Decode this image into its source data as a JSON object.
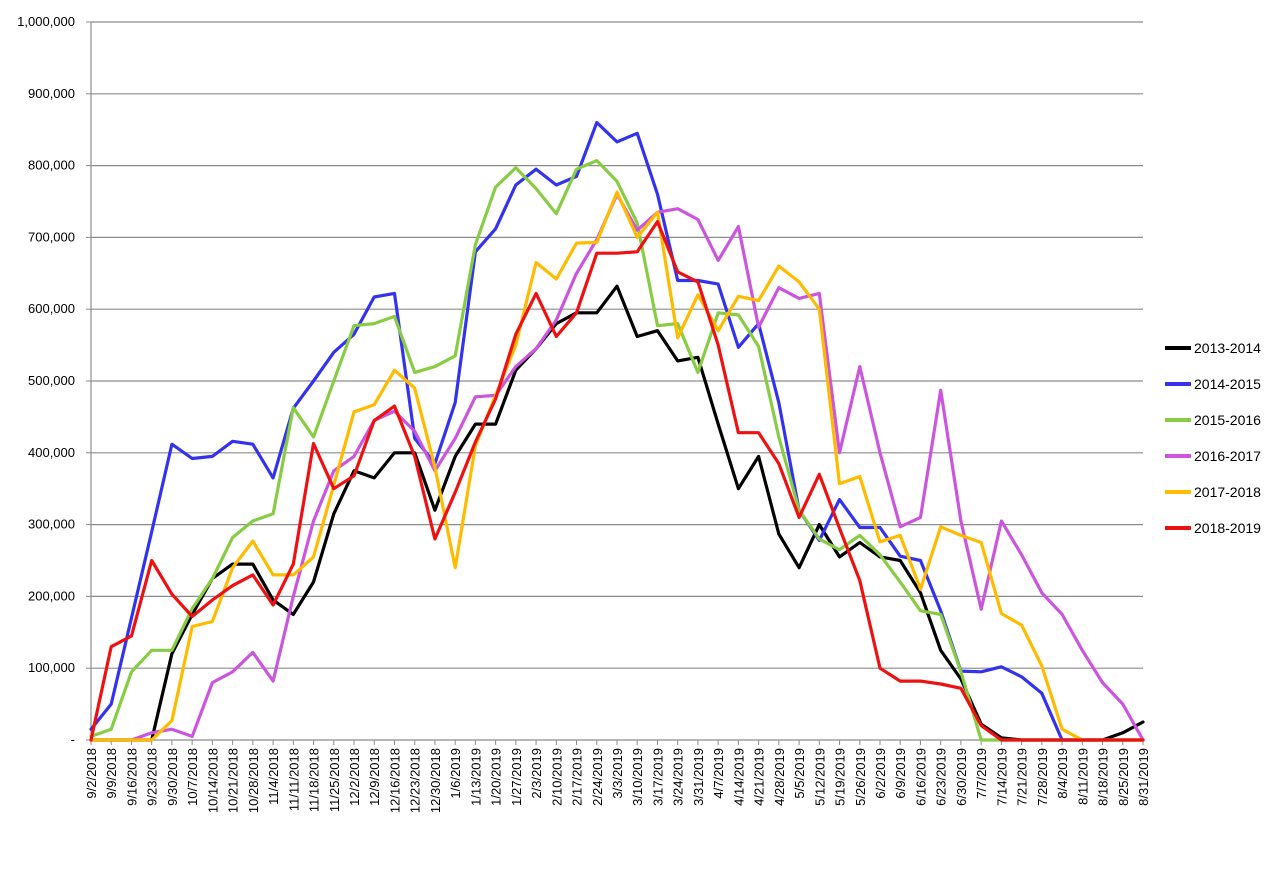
{
  "chart_data": {
    "type": "line",
    "title": "",
    "xlabel": "",
    "ylabel": "",
    "ylim": [
      0,
      1000000
    ],
    "y_ticks": [
      0,
      100000,
      200000,
      300000,
      400000,
      500000,
      600000,
      700000,
      800000,
      900000,
      1000000
    ],
    "y_tick_labels": [
      "-",
      "100,000",
      "200,000",
      "300,000",
      "400,000",
      "500,000",
      "600,000",
      "700,000",
      "800,000",
      "900,000",
      "1,000,000"
    ],
    "grid": true,
    "legend_position": "right",
    "categories": [
      "9/2/2018",
      "9/9/2018",
      "9/16/2018",
      "9/23/2018",
      "9/30/2018",
      "10/7/2018",
      "10/14/2018",
      "10/21/2018",
      "10/28/2018",
      "11/4/2018",
      "11/11/2018",
      "11/18/2018",
      "11/25/2018",
      "12/2/2018",
      "12/9/2018",
      "12/16/2018",
      "12/23/2018",
      "12/30/2018",
      "1/6/2019",
      "1/13/2019",
      "1/20/2019",
      "1/27/2019",
      "2/3/2019",
      "2/10/2019",
      "2/17/2019",
      "2/24/2019",
      "3/3/2019",
      "3/10/2019",
      "3/17/2019",
      "3/24/2019",
      "3/31/2019",
      "4/7/2019",
      "4/14/2019",
      "4/21/2019",
      "4/28/2019",
      "5/5/2019",
      "5/12/2019",
      "5/19/2019",
      "5/26/2019",
      "6/2/2019",
      "6/9/2019",
      "6/16/2019",
      "6/23/2019",
      "6/30/2019",
      "7/7/2019",
      "7/14/2019",
      "7/21/2019",
      "7/28/2019",
      "8/4/2019",
      "8/11/2019",
      "8/18/2019",
      "8/25/2019",
      "8/31/2019"
    ],
    "series": [
      {
        "name": "2013-2014",
        "color": "#000000",
        "values": [
          0,
          0,
          0,
          0,
          120000,
          175000,
          225000,
          245000,
          245000,
          195000,
          175000,
          220000,
          315000,
          375000,
          365000,
          400000,
          400000,
          320000,
          395000,
          440000,
          440000,
          515000,
          545000,
          580000,
          595000,
          595000,
          632000,
          562000,
          570000,
          528000,
          533000,
          440000,
          350000,
          395000,
          287000,
          240000,
          300000,
          255000,
          275000,
          255000,
          250000,
          205000,
          125000,
          85000,
          22000,
          3000,
          0,
          0,
          0,
          0,
          0,
          10000,
          25000
        ]
      },
      {
        "name": "2014-2015",
        "color": "#3333ee",
        "values": [
          15000,
          50000,
          170000,
          290000,
          412000,
          392000,
          395000,
          416000,
          412000,
          365000,
          462000,
          500000,
          540000,
          565000,
          617000,
          622000,
          420000,
          385000,
          470000,
          680000,
          712000,
          773000,
          795000,
          773000,
          785000,
          860000,
          833000,
          845000,
          760000,
          640000,
          640000,
          635000,
          547000,
          580000,
          470000,
          320000,
          278000,
          335000,
          296000,
          296000,
          256000,
          250000,
          180000,
          96000,
          95000,
          102000,
          88000,
          65000,
          0,
          0,
          0,
          0,
          0
        ]
      },
      {
        "name": "2015-2016",
        "color": "#88cc44",
        "values": [
          5000,
          15000,
          95000,
          125000,
          125000,
          183000,
          225000,
          282000,
          305000,
          315000,
          463000,
          422000,
          500000,
          577000,
          580000,
          590000,
          512000,
          520000,
          535000,
          690000,
          770000,
          797000,
          768000,
          733000,
          795000,
          807000,
          778000,
          720000,
          577000,
          580000,
          512000,
          595000,
          592000,
          548000,
          422000,
          320000,
          280000,
          265000,
          285000,
          258000,
          220000,
          180000,
          175000,
          95000,
          0,
          0,
          0,
          0,
          0,
          0,
          0,
          0,
          0
        ]
      },
      {
        "name": "2016-2017",
        "color": "#cc55dd",
        "values": [
          0,
          0,
          0,
          10000,
          15000,
          5000,
          80000,
          95000,
          122000,
          82000,
          200000,
          305000,
          375000,
          395000,
          445000,
          458000,
          430000,
          375000,
          420000,
          478000,
          480000,
          520000,
          545000,
          585000,
          650000,
          697000,
          760000,
          710000,
          735000,
          740000,
          725000,
          668000,
          715000,
          575000,
          630000,
          615000,
          622000,
          400000,
          520000,
          400000,
          297000,
          310000,
          487000,
          305000,
          182000,
          305000,
          258000,
          205000,
          175000,
          125000,
          80000,
          50000,
          0
        ]
      },
      {
        "name": "2017-2018",
        "color": "#ffbb00",
        "values": [
          0,
          0,
          0,
          0,
          27000,
          158000,
          165000,
          240000,
          277000,
          230000,
          230000,
          255000,
          355000,
          457000,
          467000,
          515000,
          490000,
          380000,
          240000,
          410000,
          480000,
          550000,
          665000,
          642000,
          692000,
          693000,
          763000,
          700000,
          735000,
          560000,
          620000,
          570000,
          618000,
          612000,
          660000,
          638000,
          600000,
          357000,
          367000,
          276000,
          285000,
          210000,
          297000,
          285000,
          275000,
          176000,
          160000,
          103000,
          15000,
          0,
          0,
          0,
          0
        ]
      },
      {
        "name": "2018-2019",
        "color": "#ee1111",
        "values": [
          0,
          130000,
          145000,
          250000,
          203000,
          172000,
          195000,
          215000,
          230000,
          188000,
          245000,
          413000,
          350000,
          368000,
          445000,
          465000,
          395000,
          280000,
          345000,
          415000,
          475000,
          565000,
          622000,
          562000,
          595000,
          678000,
          678000,
          680000,
          722000,
          652000,
          638000,
          550000,
          428000,
          428000,
          385000,
          310000,
          370000,
          295000,
          222000,
          100000,
          82000,
          82000,
          78000,
          72000,
          20000,
          0,
          0,
          0,
          0,
          0,
          0,
          0,
          0
        ]
      }
    ]
  }
}
